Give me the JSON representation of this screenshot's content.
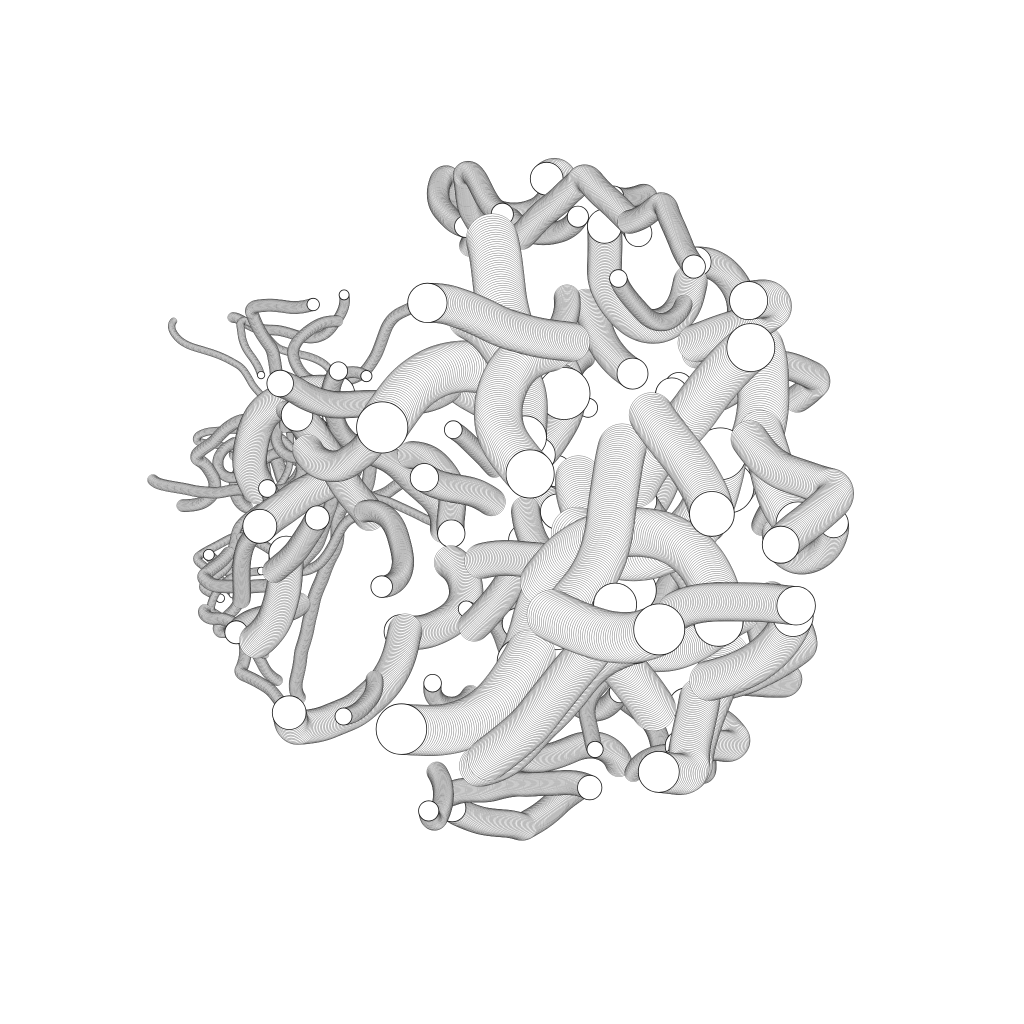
{
  "artwork": {
    "background_color": "#ffffff",
    "stroke_color": "#000000",
    "tube_fill_color": "#ffffff",
    "description_visible_text": ""
  }
}
